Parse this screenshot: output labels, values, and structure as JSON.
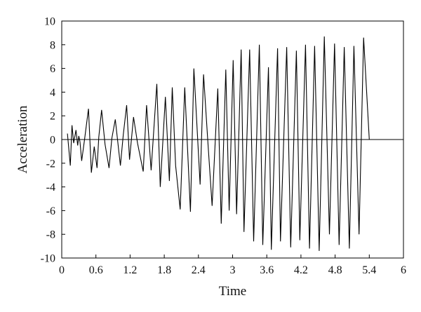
{
  "chart_data": {
    "type": "line",
    "title": "",
    "xlabel": "Time",
    "ylabel": "Acceleration",
    "xlim": [
      0,
      6
    ],
    "ylim": [
      -10,
      10
    ],
    "x_ticks": [
      0,
      0.6,
      1.2,
      1.8,
      2.4,
      3,
      3.6,
      4.2,
      4.8,
      5.4,
      6
    ],
    "x_tick_labels": [
      "0",
      "0.6",
      "1.2",
      "1.8",
      "2.4",
      "3",
      "3.6",
      "4.2",
      "4.8",
      "5.4",
      "6"
    ],
    "y_ticks": [
      -10,
      -8,
      -6,
      -4,
      -2,
      0,
      2,
      4,
      6,
      8,
      10
    ],
    "y_tick_labels": [
      "-10",
      "-8",
      "-6",
      "-4",
      "-2",
      "0",
      "2",
      "4",
      "6",
      "8",
      "10"
    ],
    "grid": false,
    "legend": "none",
    "zero_line": true,
    "line_color": "#000000",
    "series": [
      {
        "x": [
          0.1,
          0.15,
          0.18,
          0.21,
          0.25,
          0.28,
          0.3,
          0.32,
          0.35,
          0.4,
          0.47,
          0.52,
          0.57,
          0.62,
          0.65,
          0.7,
          0.76,
          0.83,
          0.88,
          0.94,
          1.03,
          1.08,
          1.14,
          1.19,
          1.26,
          1.33,
          1.43,
          1.49,
          1.57,
          1.67,
          1.73,
          1.82,
          1.89,
          1.94,
          2.0,
          2.08,
          2.16,
          2.26,
          2.32,
          2.43,
          2.49,
          2.56,
          2.64,
          2.74,
          2.8,
          2.88,
          2.94,
          3.01,
          3.07,
          3.15,
          3.2,
          3.3,
          3.37,
          3.47,
          3.53,
          3.63,
          3.68,
          3.79,
          3.84,
          3.95,
          4.02,
          4.12,
          4.18,
          4.28,
          4.35,
          4.44,
          4.52,
          4.61,
          4.7,
          4.79,
          4.87,
          4.96,
          5.05,
          5.13,
          5.22,
          5.3,
          5.4,
          5.47,
          5.57,
          5.67,
          5.72,
          5.83
        ],
        "y": [
          0.5,
          -2.2,
          1.2,
          -0.3,
          0.8,
          -0.5,
          0.3,
          -0.2,
          -1.8,
          0.0,
          2.6,
          -2.8,
          -0.6,
          -2.4,
          0.2,
          2.5,
          -0.4,
          -2.4,
          0.1,
          1.7,
          -2.2,
          0.4,
          2.9,
          -1.7,
          1.9,
          -0.3,
          -2.7,
          2.9,
          -2.6,
          4.7,
          -4.0,
          3.6,
          -3.5,
          4.4,
          -2.2,
          -5.9,
          4.4,
          -6.1,
          6.0,
          -3.8,
          5.5,
          0.2,
          -5.6,
          4.3,
          -7.1,
          5.9,
          -6.0,
          6.7,
          -6.3,
          7.6,
          -7.8,
          7.6,
          -8.6,
          8.0,
          -8.9,
          6.1,
          -9.3,
          7.7,
          -8.6,
          7.8,
          -9.1,
          7.5,
          -8.5,
          8.0,
          -9.2,
          7.9,
          -9.4,
          8.7,
          -8.0,
          8.1,
          -8.9,
          7.8,
          -9.2,
          7.9,
          -8.0,
          8.6,
          0,
          0,
          0,
          0,
          0,
          0
        ]
      }
    ]
  }
}
